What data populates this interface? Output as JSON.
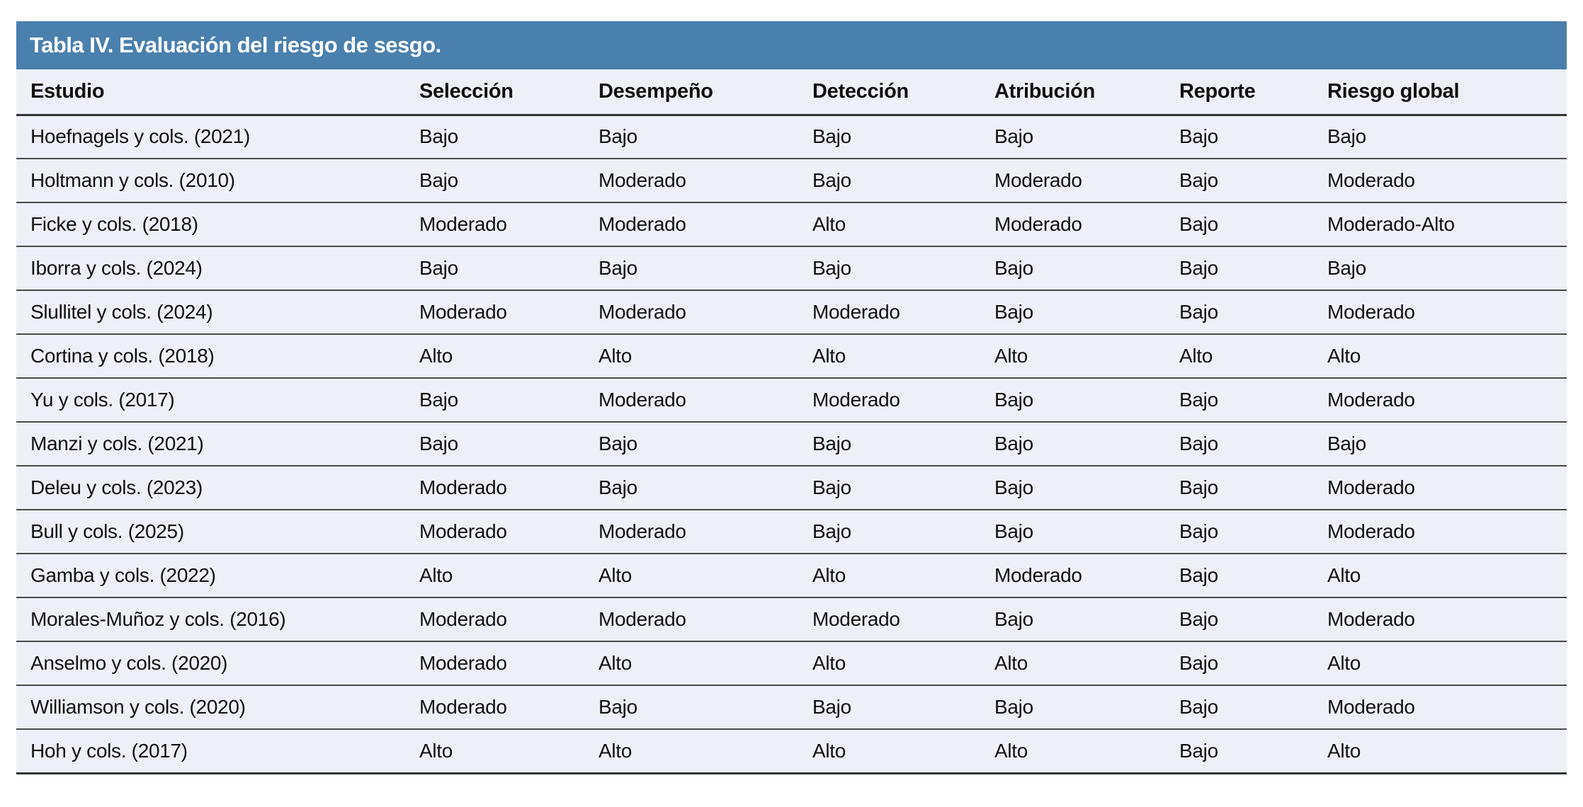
{
  "table": {
    "title": "Tabla IV. Evaluación del riesgo de sesgo.",
    "columns": [
      "Estudio",
      "Selección",
      "Desempeño",
      "Detección",
      "Atribución",
      "Reporte",
      "Riesgo global"
    ],
    "rows": [
      [
        "Hoefnagels y cols. (2021)",
        "Bajo",
        "Bajo",
        "Bajo",
        "Bajo",
        "Bajo",
        "Bajo"
      ],
      [
        "Holtmann y cols. (2010)",
        "Bajo",
        "Moderado",
        "Bajo",
        "Moderado",
        "Bajo",
        "Moderado"
      ],
      [
        "Ficke y cols. (2018)",
        "Moderado",
        "Moderado",
        "Alto",
        "Moderado",
        "Bajo",
        "Moderado-Alto"
      ],
      [
        "Iborra y cols. (2024)",
        "Bajo",
        "Bajo",
        "Bajo",
        "Bajo",
        "Bajo",
        "Bajo"
      ],
      [
        "Slullitel y cols. (2024)",
        "Moderado",
        "Moderado",
        "Moderado",
        "Bajo",
        "Bajo",
        "Moderado"
      ],
      [
        "Cortina y cols. (2018)",
        "Alto",
        "Alto",
        "Alto",
        "Alto",
        "Alto",
        "Alto"
      ],
      [
        "Yu y cols. (2017)",
        "Bajo",
        "Moderado",
        "Moderado",
        "Bajo",
        "Bajo",
        "Moderado"
      ],
      [
        "Manzi y cols. (2021)",
        "Bajo",
        "Bajo",
        "Bajo",
        "Bajo",
        "Bajo",
        "Bajo"
      ],
      [
        "Deleu y cols. (2023)",
        "Moderado",
        "Bajo",
        "Bajo",
        "Bajo",
        "Bajo",
        "Moderado"
      ],
      [
        "Bull y cols. (2025)",
        "Moderado",
        "Moderado",
        "Bajo",
        "Bajo",
        "Bajo",
        "Moderado"
      ],
      [
        "Gamba y cols. (2022)",
        "Alto",
        "Alto",
        "Alto",
        "Moderado",
        "Bajo",
        "Alto"
      ],
      [
        "Morales-Muñoz y cols. (2016)",
        "Moderado",
        "Moderado",
        "Moderado",
        "Bajo",
        "Bajo",
        "Moderado"
      ],
      [
        "Anselmo y cols. (2020)",
        "Moderado",
        "Alto",
        "Alto",
        "Alto",
        "Bajo",
        "Alto"
      ],
      [
        "Williamson y cols. (2020)",
        "Moderado",
        "Bajo",
        "Bajo",
        "Bajo",
        "Bajo",
        "Moderado"
      ],
      [
        "Hoh y cols. (2017)",
        "Alto",
        "Alto",
        "Alto",
        "Alto",
        "Bajo",
        "Alto"
      ]
    ]
  },
  "colors": {
    "title_bg": "#4a80ae",
    "title_text": "#ffffff",
    "row_bg": "#edf0f7",
    "rule": "#4a4a4a",
    "text": "#111111"
  }
}
